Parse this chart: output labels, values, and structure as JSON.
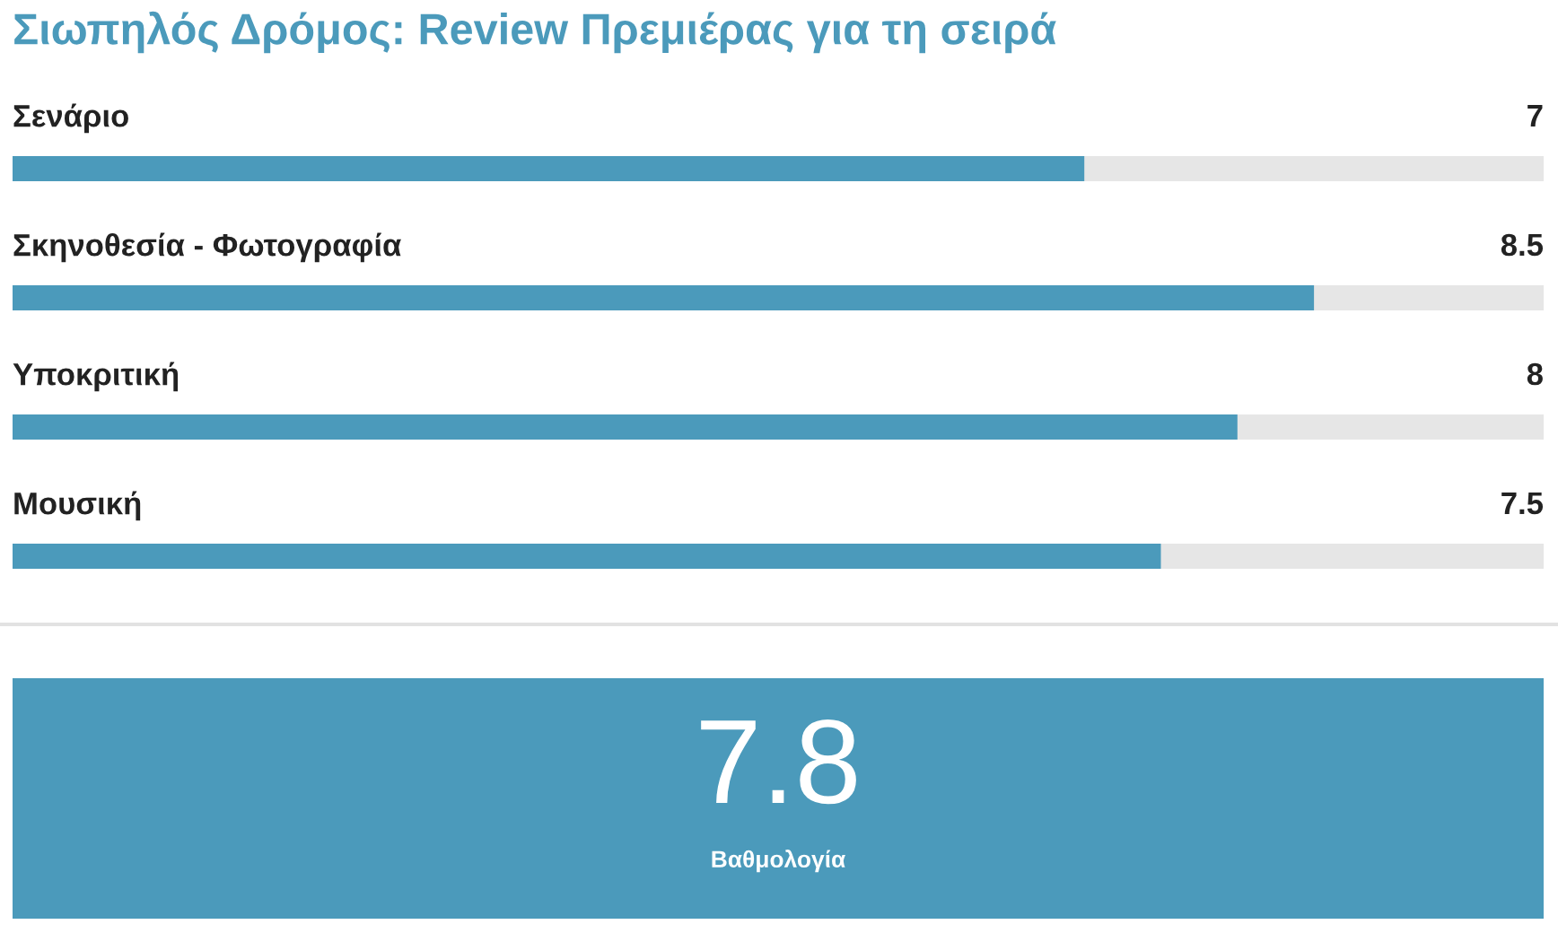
{
  "chart_data": [
    {
      "type": "bar",
      "orientation": "horizontal",
      "title": "Σιωπηλός Δρόμος: Review Πρεμιέρας για τη σειρά",
      "categories": [
        "Σενάριο",
        "Σκηνοθεσία - Φωτογραφία",
        "Υποκριτική",
        "Μουσική"
      ],
      "values": [
        7,
        8.5,
        8,
        7.5
      ],
      "color": "#4b9abb",
      "xlim": [
        0,
        10
      ],
      "data_labels": true,
      "tick_labels": "y"
    },
    {
      "type": "other",
      "categories": [
        "Βαθμολογία"
      ],
      "values": [
        7.8
      ],
      "color": "#4b9abb",
      "data_labels": true
    }
  ]
}
